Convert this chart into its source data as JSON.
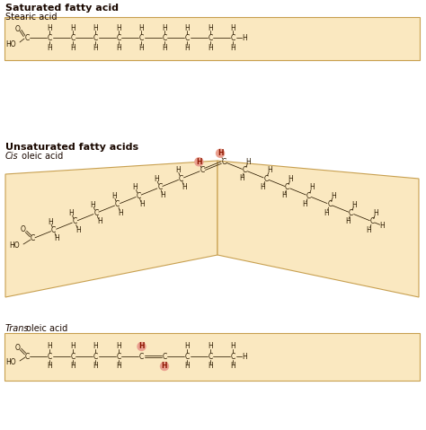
{
  "bg": "#FAE8C0",
  "white": "#FFFFFF",
  "tc": "#2B1A00",
  "ec": "#C8A050",
  "rc": "#EAA090",
  "rtc": "#8B1500",
  "title1": "Saturated fatty acid",
  "sub1": "Stearic acid",
  "title2": "Unsaturated fatty acids",
  "sub2i": "Cis",
  "sub2r": " oleic acid",
  "sub3i": "Trans",
  "sub3r": " oleic acid",
  "fw": 4.74,
  "fh": 4.79,
  "dpi": 100
}
